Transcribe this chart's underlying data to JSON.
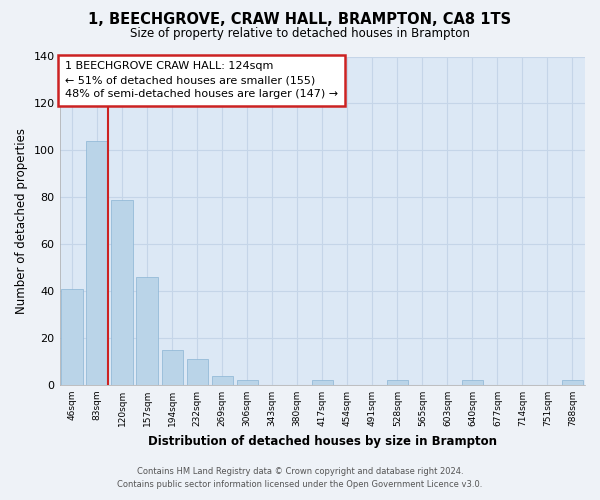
{
  "title": "1, BEECHGROVE, CRAW HALL, BRAMPTON, CA8 1TS",
  "subtitle": "Size of property relative to detached houses in Brampton",
  "xlabel": "Distribution of detached houses by size in Brampton",
  "ylabel": "Number of detached properties",
  "bar_labels": [
    "46sqm",
    "83sqm",
    "120sqm",
    "157sqm",
    "194sqm",
    "232sqm",
    "269sqm",
    "306sqm",
    "343sqm",
    "380sqm",
    "417sqm",
    "454sqm",
    "491sqm",
    "528sqm",
    "565sqm",
    "603sqm",
    "640sqm",
    "677sqm",
    "714sqm",
    "751sqm",
    "788sqm"
  ],
  "bar_values": [
    41,
    104,
    79,
    46,
    15,
    11,
    4,
    2,
    0,
    0,
    2,
    0,
    0,
    2,
    0,
    0,
    2,
    0,
    0,
    0,
    2
  ],
  "bar_color": "#bad4e8",
  "highlight_color": "#cc2222",
  "vline_bar_index": 1,
  "ylim": [
    0,
    140
  ],
  "yticks": [
    0,
    20,
    40,
    60,
    80,
    100,
    120,
    140
  ],
  "annotation_title": "1 BEECHGROVE CRAW HALL: 124sqm",
  "annotation_line1": "← 51% of detached houses are smaller (155)",
  "annotation_line2": "48% of semi-detached houses are larger (147) →",
  "footer_line1": "Contains HM Land Registry data © Crown copyright and database right 2024.",
  "footer_line2": "Contains public sector information licensed under the Open Government Licence v3.0.",
  "bg_color": "#eef2f7",
  "plot_bg_color": "#dce8f5",
  "grid_color": "#c5d5e8"
}
